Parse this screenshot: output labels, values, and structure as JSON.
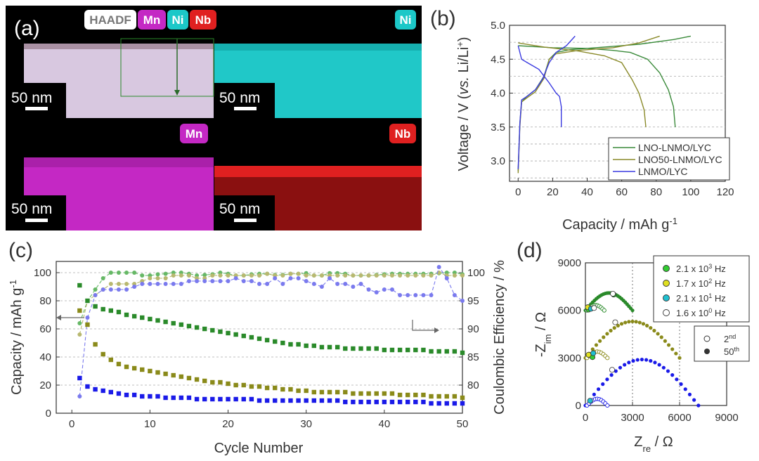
{
  "panel_labels": {
    "a": "(a)",
    "b": "(b)",
    "c": "(c)",
    "d": "(d)"
  },
  "colors": {
    "nmo": "#3a8a3a",
    "lnmo50": "#8a8a2a",
    "lnmo": "#3a3ae0",
    "ni_map": "#1cc8c8",
    "mn_map": "#c020c0",
    "nb_map": "#e02020",
    "haadf_tag": "#ffffff",
    "d_green": "#33cc33",
    "d_yellow": "#e0e020",
    "d_cyan": "#20c0d0",
    "d_white": "#ffffff"
  },
  "eds": {
    "tags": {
      "haadf": "HAADF",
      "mn": "Mn",
      "ni": "Ni",
      "nb": "Nb"
    },
    "scale_bar": "50 nm"
  },
  "chart_data": [
    {
      "id": "b",
      "type": "line",
      "title": "",
      "xlabel": "Capacity / mAh g",
      "xlabel_sup": "-1",
      "ylabel_pre": "Voltage / V (",
      "ylabel_vs": "vs.",
      "ylabel_post": " Li/Li",
      "ylabel_sup": "+",
      "ylabel_end": ")",
      "xlim": [
        -5,
        120
      ],
      "ylim": [
        2.7,
        5.0
      ],
      "xticks": [
        0,
        20,
        40,
        60,
        80,
        100,
        120
      ],
      "yticks": [
        3.0,
        3.5,
        4.0,
        4.5,
        5.0
      ],
      "ytick_labels": [
        "3.0",
        "3.5",
        "4.0",
        "4.5",
        "5.0"
      ],
      "legend": [
        "LNO-LNMO/LYC",
        "LNO50-LNMO/LYC",
        "LNMO/LYC"
      ],
      "series": [
        {
          "name": "LNO-LNMO/LYC",
          "color": "#3a8a3a",
          "charge": [
            [
              0,
              2.85
            ],
            [
              1,
              3.55
            ],
            [
              2,
              3.87
            ],
            [
              5,
              3.95
            ],
            [
              10,
              4.05
            ],
            [
              15,
              4.25
            ],
            [
              18,
              4.5
            ],
            [
              22,
              4.6
            ],
            [
              30,
              4.64
            ],
            [
              50,
              4.68
            ],
            [
              70,
              4.72
            ],
            [
              90,
              4.79
            ],
            [
              100,
              4.84
            ]
          ],
          "discharge": [
            [
              0,
              4.7
            ],
            [
              20,
              4.67
            ],
            [
              40,
              4.66
            ],
            [
              55,
              4.63
            ],
            [
              65,
              4.6
            ],
            [
              75,
              4.5
            ],
            [
              82,
              4.3
            ],
            [
              87,
              4.05
            ],
            [
              90,
              3.8
            ],
            [
              91,
              3.5
            ]
          ]
        },
        {
          "name": "LNO50-LNMO/LYC",
          "color": "#8a8a2a",
          "charge": [
            [
              0,
              2.82
            ],
            [
              1,
              3.5
            ],
            [
              2,
              3.87
            ],
            [
              5,
              3.93
            ],
            [
              10,
              4.02
            ],
            [
              15,
              4.22
            ],
            [
              18,
              4.5
            ],
            [
              22,
              4.58
            ],
            [
              35,
              4.63
            ],
            [
              55,
              4.67
            ],
            [
              70,
              4.74
            ],
            [
              82,
              4.84
            ]
          ],
          "discharge": [
            [
              0,
              4.74
            ],
            [
              15,
              4.68
            ],
            [
              35,
              4.62
            ],
            [
              50,
              4.55
            ],
            [
              60,
              4.45
            ],
            [
              66,
              4.2
            ],
            [
              70,
              4.0
            ],
            [
              73,
              3.75
            ],
            [
              74,
              3.5
            ]
          ]
        },
        {
          "name": "LNMO/LYC",
          "color": "#3a3ae0",
          "charge": [
            [
              0,
              2.88
            ],
            [
              1,
              3.55
            ],
            [
              2,
              3.9
            ],
            [
              5,
              3.95
            ],
            [
              10,
              4.05
            ],
            [
              14,
              4.2
            ],
            [
              18,
              4.45
            ],
            [
              22,
              4.6
            ],
            [
              28,
              4.7
            ],
            [
              33,
              4.84
            ]
          ],
          "discharge": [
            [
              0,
              4.7
            ],
            [
              2,
              4.5
            ],
            [
              6,
              4.44
            ],
            [
              12,
              4.35
            ],
            [
              18,
              4.15
            ],
            [
              22,
              4.0
            ],
            [
              24,
              3.95
            ],
            [
              25,
              3.8
            ],
            [
              25,
              3.5
            ]
          ]
        }
      ]
    },
    {
      "id": "c",
      "type": "scatter",
      "title": "",
      "xlabel": "Cycle Number",
      "ylabel_pre": "Capacity / mAh g",
      "ylabel_sup": "-1",
      "y2label": "Coulombic Efficiency / %",
      "xlim": [
        -2,
        50
      ],
      "ylim": [
        0,
        108
      ],
      "y2lim": [
        75,
        102
      ],
      "xticks": [
        0,
        10,
        20,
        30,
        40,
        50
      ],
      "yticks": [
        0,
        20,
        40,
        60,
        80,
        100
      ],
      "y2ticks": [
        80,
        85,
        90,
        95,
        100
      ],
      "capacity": [
        {
          "name": "LNO-LNMO/LYC",
          "color": "#2a8a2a",
          "values": [
            91,
            80,
            76,
            74,
            73,
            72,
            70,
            69,
            68,
            67,
            66,
            65,
            64,
            63,
            62,
            61,
            60,
            59,
            58,
            57,
            56,
            55,
            54,
            53,
            52,
            51,
            50,
            49,
            49,
            48,
            48,
            47,
            47,
            47,
            46,
            46,
            46,
            46,
            46,
            45,
            45,
            45,
            45,
            45,
            45,
            44,
            44,
            44,
            44,
            43
          ]
        },
        {
          "name": "LNO50-LNMO/LYC",
          "color": "#8a8a1a",
          "values": [
            73,
            63,
            49,
            42,
            38,
            35,
            33,
            32,
            31,
            30,
            29,
            28,
            27,
            26,
            25,
            24,
            23,
            22,
            22,
            21,
            20,
            20,
            19,
            19,
            18,
            18,
            17,
            17,
            16,
            16,
            15,
            15,
            15,
            15,
            15,
            14,
            14,
            14,
            14,
            14,
            14,
            13,
            13,
            13,
            13,
            12,
            12,
            12,
            12,
            11
          ]
        },
        {
          "name": "LNMO/LYC",
          "color": "#1a1ae8",
          "values": [
            25,
            19,
            17,
            16,
            15,
            14,
            13,
            13,
            12,
            12,
            12,
            11,
            11,
            11,
            11,
            10,
            10,
            10,
            10,
            10,
            10,
            10,
            10,
            9,
            9,
            9,
            9,
            9,
            9,
            9,
            9,
            9,
            9,
            9,
            8,
            8,
            8,
            8,
            8,
            8,
            8,
            8,
            8,
            8,
            8,
            7,
            7,
            7,
            7,
            7
          ]
        }
      ],
      "efficiency": [
        {
          "name": "LNO-LNMO/LYC",
          "color": "#66b866",
          "values": [
            91,
            95,
            97,
            99,
            100,
            100,
            100,
            100,
            99.5,
            99.5,
            99.7,
            99.8,
            100,
            100,
            99.8,
            99.5,
            99.6,
            99.7,
            100,
            99.8,
            99.5,
            99.5,
            99.7,
            99.8,
            99.8,
            99.6,
            99.6,
            99.8,
            99.8,
            99.9,
            99.5,
            99.5,
            99.9,
            99.9,
            99.8,
            99.5,
            99.5,
            99.5,
            99.6,
            99.7,
            99.8,
            99.8,
            99.8,
            99.8,
            99.8,
            99.8,
            99.9,
            100,
            100,
            99.7
          ]
        },
        {
          "name": "LNO50-LNMO/LYC",
          "color": "#b8b870",
          "values": [
            89,
            95,
            96,
            97,
            98,
            98,
            98,
            98,
            98.5,
            99,
            99,
            99,
            99.5,
            99.5,
            99.5,
            99,
            99,
            99.5,
            99.5,
            99.5,
            99.5,
            99.5,
            99.5,
            99.5,
            99.8,
            99.5,
            99.5,
            99.8,
            99.8,
            99.5,
            99.5,
            99.5,
            99.5,
            99.5,
            99.5,
            99.5,
            99.5,
            99.5,
            99.5,
            99.5,
            99.5,
            99.5,
            99.5,
            99.5,
            99.5,
            99.5,
            100,
            99.5,
            99.5,
            99.5
          ]
        },
        {
          "name": "LNMO/LYC",
          "color": "#7a7aee",
          "values": [
            78,
            92,
            96,
            97,
            97,
            97,
            97,
            97.5,
            98,
            98,
            98,
            98,
            98,
            98,
            98.5,
            98.5,
            98.5,
            98.5,
            98.5,
            98.5,
            99,
            98.5,
            98.5,
            98,
            98,
            99,
            98,
            99,
            99,
            98.5,
            98,
            97.5,
            99,
            98,
            98,
            97.5,
            98,
            97,
            96.5,
            97,
            97,
            96,
            96,
            96,
            96,
            96,
            101,
            99,
            96,
            95
          ]
        }
      ]
    },
    {
      "id": "d",
      "type": "scatter",
      "title": "",
      "xlabel": "Z",
      "xlabel_sub": "re",
      "xlabel_unit": " / Ω",
      "ylabel": "-Z",
      "ylabel_sub": "im",
      "ylabel_unit": " / Ω",
      "xlim": [
        0,
        9000
      ],
      "ylim": [
        0,
        9000
      ],
      "xticks": [
        0,
        3000,
        6000,
        9000
      ],
      "yticks": [
        0,
        3000,
        6000,
        9000
      ],
      "legend_freq": [
        {
          "label": "2.1 x 10",
          "sup": "3",
          "unit": " Hz",
          "color": "#33cc33"
        },
        {
          "label": "1.7 x 10",
          "sup": "2",
          "unit": " Hz",
          "color": "#e0e020"
        },
        {
          "label": "2.1 x 10",
          "sup": "1",
          "unit": " Hz",
          "color": "#20c0d0"
        },
        {
          "label": "1.6 x 10",
          "sup": "0",
          "unit": " Hz",
          "color": "#ffffff"
        }
      ],
      "legend_cycle": [
        {
          "label": "2",
          "sup": "nd",
          "fill": "open"
        },
        {
          "label": "50",
          "sup": "th",
          "fill": "filled"
        }
      ],
      "arcs": [
        {
          "name": "LNO-LNMO/LYC 50th",
          "color": "#2a8a2a",
          "offset": 6000,
          "x0": 0,
          "x1": 3000,
          "height": 1100
        },
        {
          "name": "LNO50-LNMO/LYC 50th",
          "color": "#8a8a1a",
          "offset": 3000,
          "x0": 0,
          "x1": 6000,
          "height": 2300
        },
        {
          "name": "LNMO/LYC 50th",
          "color": "#1a1ae8",
          "offset": 0,
          "x0": 0,
          "x1": 7200,
          "height": 2900
        }
      ],
      "small_arcs": [
        {
          "color": "#2a8a2a",
          "offset": 6000,
          "x1": 1100,
          "height": 330
        },
        {
          "color": "#8a8a1a",
          "offset": 3000,
          "x1": 1300,
          "height": 400
        },
        {
          "color": "#1a1ae8",
          "offset": 0,
          "x1": 1300,
          "height": 420
        }
      ]
    }
  ]
}
